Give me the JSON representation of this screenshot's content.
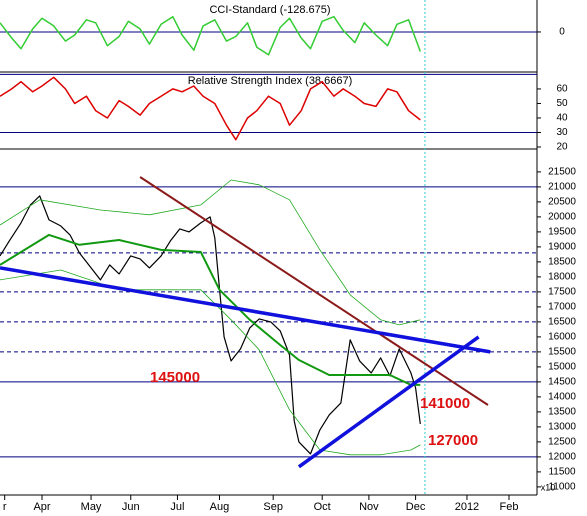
{
  "chart_data": [
    {
      "type": "line",
      "title": "CCI-Standard (-128.675)",
      "ylim": [
        -250,
        210
      ],
      "yticks": [
        0
      ],
      "hlines": [
        {
          "value": 0
        }
      ],
      "series": [
        {
          "color": "#33cc33",
          "width": 1.5,
          "x": [
            0,
            5,
            9,
            14,
            18,
            23,
            28,
            32,
            37,
            41,
            46,
            51,
            55,
            60,
            64,
            69,
            74,
            78,
            83,
            87,
            92,
            97,
            101,
            106,
            110,
            115,
            120,
            124,
            129,
            133,
            138,
            143,
            147,
            152,
            156,
            161,
            166,
            170,
            175,
            180
          ],
          "values": [
            60,
            -40,
            -110,
            20,
            90,
            40,
            -60,
            -20,
            80,
            60,
            -90,
            -30,
            70,
            20,
            -80,
            50,
            100,
            -20,
            -120,
            40,
            80,
            -60,
            -30,
            60,
            -100,
            -150,
            30,
            90,
            -40,
            -110,
            70,
            100,
            10,
            -70,
            60,
            -20,
            -90,
            50,
            80,
            -128.675
          ]
        }
      ]
    },
    {
      "type": "line",
      "title": "Relative Strength Index (38.6667)",
      "ylim": [
        19.3,
        70.3
      ],
      "yticks": [
        20,
        30,
        40,
        50,
        60
      ],
      "hlines": [
        {
          "value": 30
        },
        {
          "value": 70
        }
      ],
      "series": [
        {
          "color": "#dd0000",
          "width": 1.5,
          "x": [
            0,
            5,
            9,
            14,
            18,
            23,
            28,
            32,
            37,
            41,
            46,
            51,
            55,
            60,
            64,
            69,
            74,
            78,
            83,
            87,
            92,
            97,
            101,
            106,
            110,
            115,
            120,
            124,
            129,
            133,
            138,
            143,
            147,
            152,
            156,
            161,
            166,
            170,
            175,
            180
          ],
          "values": [
            55,
            60,
            65,
            58,
            62,
            68,
            60,
            50,
            55,
            45,
            40,
            52,
            48,
            42,
            50,
            55,
            60,
            58,
            62,
            55,
            50,
            35,
            25,
            40,
            45,
            55,
            50,
            35,
            45,
            60,
            65,
            55,
            60,
            55,
            50,
            48,
            60,
            58,
            45,
            38.6667
          ]
        }
      ]
    },
    {
      "type": "line",
      "ylabel": "x10",
      "xlim": [
        0,
        230
      ],
      "xticks": [
        {
          "value": 2,
          "label": "r"
        },
        {
          "value": 18,
          "label": "Apr"
        },
        {
          "value": 39,
          "label": "May"
        },
        {
          "value": 56,
          "label": "Jun"
        },
        {
          "value": 76,
          "label": "Jul"
        },
        {
          "value": 94,
          "label": "Aug"
        },
        {
          "value": 117,
          "label": "Sep"
        },
        {
          "value": 138,
          "label": "Oct"
        },
        {
          "value": 158,
          "label": "Nov"
        },
        {
          "value": 178,
          "label": "Dec"
        },
        {
          "value": 200,
          "label": "2012"
        },
        {
          "value": 218,
          "label": "Feb"
        }
      ],
      "ylim": [
        10730,
        22230
      ],
      "yticks": [
        11000,
        11500,
        12000,
        12500,
        13000,
        13500,
        14000,
        14500,
        15000,
        15500,
        16000,
        16500,
        17000,
        17500,
        18000,
        18500,
        19000,
        19500,
        20000,
        20500,
        21000,
        21500
      ],
      "hlines": [
        {
          "value": 21000
        },
        {
          "value": 18800,
          "dashed": true
        },
        {
          "value": 17500,
          "dashed": true
        },
        {
          "value": 16500,
          "dashed": true
        },
        {
          "value": 15500,
          "dashed": true
        },
        {
          "value": 14500
        },
        {
          "value": 12000
        }
      ],
      "vline": 182,
      "annotations": [
        "145000",
        "141000",
        "127000"
      ],
      "series": [
        {
          "color": "#000000",
          "width": 1.2,
          "x": [
            0,
            4,
            9,
            13,
            17,
            21,
            26,
            30,
            34,
            39,
            43,
            47,
            51,
            56,
            60,
            64,
            69,
            73,
            77,
            81,
            86,
            90,
            92,
            94,
            96,
            99,
            103,
            107,
            111,
            116,
            120,
            124,
            126,
            128,
            133,
            137,
            141,
            146,
            150,
            154,
            159,
            163,
            167,
            171,
            176,
            178,
            180
          ],
          "values": [
            18700,
            19200,
            19800,
            20400,
            20700,
            19900,
            19700,
            19400,
            18800,
            18300,
            17900,
            18400,
            18100,
            18700,
            18600,
            18300,
            18700,
            19200,
            19600,
            19500,
            19800,
            20000,
            19300,
            17600,
            16000,
            15200,
            15600,
            16300,
            16600,
            16500,
            16200,
            15400,
            13200,
            12500,
            12100,
            12900,
            13400,
            13800,
            15900,
            15200,
            14800,
            15300,
            14700,
            15600,
            14800,
            14300,
            13100
          ]
        },
        {
          "color": "#119911",
          "width": 2,
          "x": [
            0,
            21,
            34,
            51,
            69,
            86,
            94,
            107,
            120,
            128,
            141,
            154,
            167,
            176,
            180
          ],
          "values": [
            18400,
            19400,
            19070,
            19230,
            18900,
            18830,
            17570,
            16570,
            15730,
            15230,
            14730,
            14730,
            14730,
            14400,
            14400
          ]
        },
        {
          "color": "#22aa22",
          "width": 0.8,
          "x": [
            0,
            17,
            43,
            64,
            86,
            99,
            111,
            124,
            137,
            150,
            163,
            171,
            180
          ],
          "values": [
            19730,
            20570,
            20230,
            20070,
            20400,
            21230,
            21070,
            20570,
            18900,
            17400,
            16570,
            16400,
            16570
          ]
        },
        {
          "color": "#22aa22",
          "width": 0.8,
          "x": [
            0,
            26,
            51,
            86,
            99,
            111,
            124,
            137,
            150,
            163,
            176,
            180
          ],
          "values": [
            17900,
            18230,
            17570,
            17570,
            16570,
            15570,
            13570,
            12230,
            12070,
            12070,
            12230,
            12400
          ]
        },
        {
          "color": "#8b1a1a",
          "width": 2,
          "x": [
            60,
            209
          ],
          "values": [
            21330,
            13730
          ]
        },
        {
          "color": "#1111dd",
          "width": 3.5,
          "x": [
            0,
            210
          ],
          "values": [
            18300,
            15500
          ]
        },
        {
          "color": "#1111dd",
          "width": 3.5,
          "x": [
            128,
            205
          ],
          "values": [
            11670,
            16000
          ]
        }
      ]
    }
  ]
}
